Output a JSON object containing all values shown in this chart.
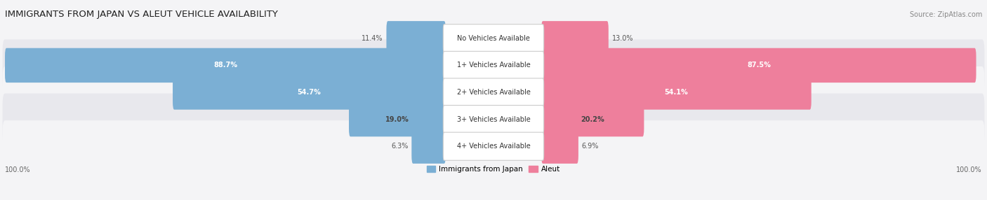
{
  "title": "IMMIGRANTS FROM JAPAN VS ALEUT VEHICLE AVAILABILITY",
  "source": "Source: ZipAtlas.com",
  "categories": [
    "No Vehicles Available",
    "1+ Vehicles Available",
    "2+ Vehicles Available",
    "3+ Vehicles Available",
    "4+ Vehicles Available"
  ],
  "japan_values": [
    11.4,
    88.7,
    54.7,
    19.0,
    6.3
  ],
  "aleut_values": [
    13.0,
    87.5,
    54.1,
    20.2,
    6.9
  ],
  "japan_color": "#7bafd4",
  "aleut_color": "#ee7f9c",
  "japan_label": "Immigrants from Japan",
  "aleut_label": "Aleut",
  "row_bg_light": "#f4f4f6",
  "row_bg_dark": "#e8e8ed",
  "fig_bg": "#f4f4f6",
  "max_value": 100.0,
  "axis_label_left": "100.0%",
  "axis_label_right": "100.0%",
  "label_inside_color_dark": "#444444",
  "label_inside_color_light": "#ffffff"
}
